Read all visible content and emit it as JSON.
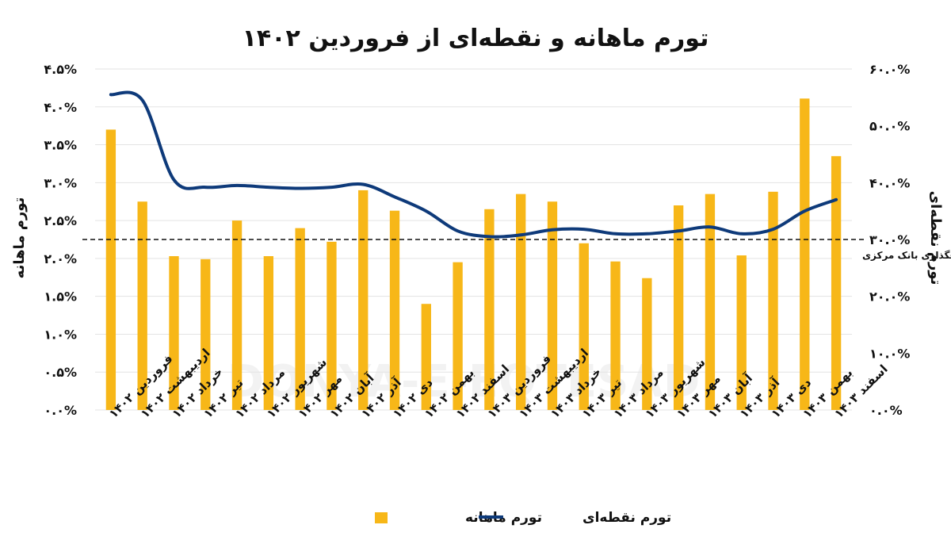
{
  "chart_data": {
    "type": "bar-line",
    "title": "تورم ماهانه و نقطه‌ای از فروردین ۱۴۰۲",
    "y_left": {
      "label": "تورم ماهانه",
      "range": [
        0,
        4.5
      ],
      "ticks": [
        "۰.۰%",
        "۰.۵%",
        "۱.۰%",
        "۱.۵%",
        "۲.۰%",
        "۲.۵%",
        "۳.۰%",
        "۳.۵%",
        "۴.۰%",
        "۴.۵%"
      ]
    },
    "y_right": {
      "label": "تورم نقطه‌ای",
      "range": [
        0,
        60
      ],
      "ticks": [
        "۰.۰%",
        "۱۰.۰%",
        "۲۰.۰%",
        "۳۰.۰%",
        "۴۰.۰%",
        "۵۰.۰%",
        "۶۰.۰%"
      ]
    },
    "categories": [
      "فروردین ۱۴۰۲",
      "اردیبهشت ۱۴۰۲",
      "خرداد ۱۴۰۲",
      "تیر ۱۴۰۲",
      "مرداد ۱۴۰۲",
      "شهریور ۱۴۰۲",
      "مهر ۱۴۰۲",
      "آبان ۱۴۰۲",
      "آذر ۱۴۰۲",
      "دی ۱۴۰۲",
      "بهمن ۱۴۰۲",
      "اسفند ۱۴۰۲",
      "فروردین ۱۴۰۳",
      "اردیبهشت ۱۴۰۳",
      "خرداد ۱۴۰۳",
      "تیر ۱۴۰۳",
      "مرداد ۱۴۰۳",
      "شهریور ۱۴۰۳",
      "مهر ۱۴۰۳",
      "آبان ۱۴۰۳",
      "آذر ۱۴۰۳",
      "دی ۱۴۰۳",
      "بهمن ۱۴۰۳",
      "اسفند ۱۴۰۳"
    ],
    "series": [
      {
        "name": "تورم ماهانه",
        "kind": "bar",
        "axis": "left",
        "color": "#F7B718",
        "values": [
          3.7,
          2.75,
          2.03,
          1.99,
          2.5,
          2.03,
          2.4,
          2.22,
          2.9,
          2.63,
          1.4,
          1.95,
          2.65,
          2.85,
          2.75,
          2.2,
          1.96,
          1.74,
          2.7,
          2.85,
          2.04,
          2.88,
          4.11,
          3.35
        ]
      },
      {
        "name": "تورم نقطه‌ای",
        "kind": "line",
        "axis": "right",
        "color": "#0E3A7A",
        "values": [
          55.5,
          54.5,
          40.5,
          39.2,
          39.5,
          39.2,
          39.0,
          39.2,
          39.7,
          37.5,
          35.0,
          31.5,
          30.5,
          30.8,
          31.7,
          31.8,
          31.0,
          31.0,
          31.5,
          32.2,
          31.0,
          31.8,
          35.0,
          37.0
        ]
      }
    ],
    "reference_line": {
      "label": "هدفگذاری بانک مرکزی",
      "value_right": 30,
      "style": "dashed"
    },
    "legend": {
      "position": "bottom",
      "items": [
        "تورم ماهانه",
        "تورم نقطه‌ای"
      ]
    },
    "watermark": "DONYA-E-EQTESAD",
    "grid": true
  }
}
